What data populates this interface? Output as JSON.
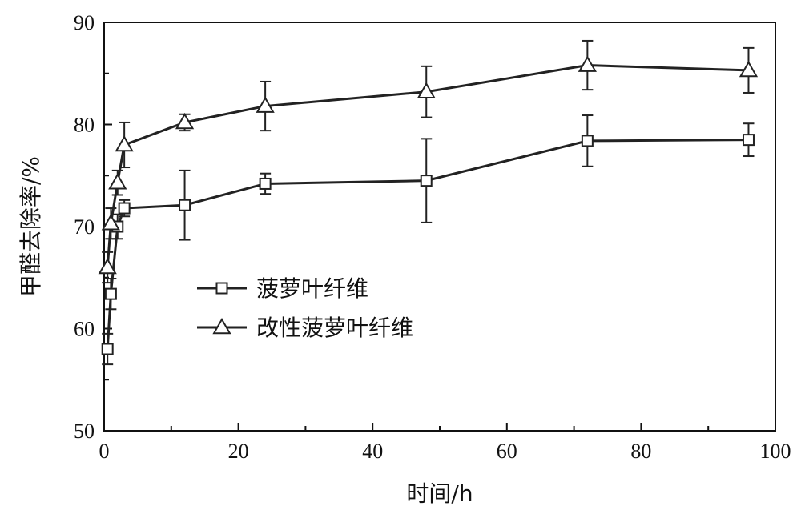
{
  "chart_data": {
    "type": "line",
    "title": "",
    "xlabel": "时间/h",
    "ylabel": "甲醛去除率/%",
    "xlim": [
      0,
      100
    ],
    "ylim": [
      50,
      90
    ],
    "x_ticks": [
      0,
      20,
      40,
      60,
      80,
      100
    ],
    "y_ticks": [
      50,
      60,
      70,
      80,
      90
    ],
    "grid": false,
    "legend_position": "middle-left",
    "series": [
      {
        "name": "菠萝叶纤维",
        "marker": "square",
        "color": "#222222",
        "x": [
          0.5,
          1,
          2,
          3,
          12,
          24,
          48,
          72,
          96
        ],
        "y": [
          58.0,
          63.4,
          70.0,
          71.8,
          72.1,
          74.2,
          74.5,
          78.4,
          78.5
        ],
        "error": [
          1.5,
          1.5,
          1.2,
          0.8,
          3.4,
          1.0,
          4.1,
          2.5,
          1.6
        ]
      },
      {
        "name": "改性菠萝叶纤维",
        "marker": "triangle",
        "color": "#222222",
        "x": [
          0.5,
          1,
          2,
          3,
          12,
          24,
          48,
          72,
          96
        ],
        "y": [
          66.0,
          70.3,
          74.3,
          78.0,
          80.2,
          81.8,
          83.2,
          85.8,
          85.3
        ],
        "error": [
          1.5,
          1.5,
          1.2,
          2.2,
          0.8,
          2.4,
          2.5,
          2.4,
          2.2
        ]
      }
    ]
  }
}
